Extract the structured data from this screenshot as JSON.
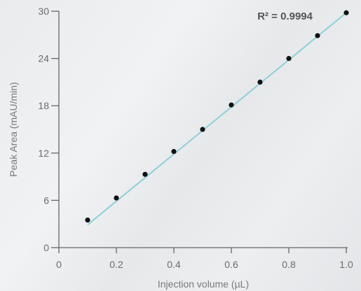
{
  "chart_data": {
    "type": "scatter",
    "title": "",
    "xlabel": "Injection volume (µL)",
    "ylabel": "Peak Area (mAU/min)",
    "xlim": [
      0,
      1.0
    ],
    "ylim": [
      0,
      30
    ],
    "x_ticks": [
      "0",
      "0.2",
      "0.4",
      "0.6",
      "0.8",
      "1.0"
    ],
    "y_ticks": [
      "0",
      "6",
      "12",
      "18",
      "24",
      "30"
    ],
    "grid": false,
    "points": {
      "x": [
        0.1,
        0.2,
        0.3,
        0.4,
        0.5,
        0.6,
        0.7,
        0.8,
        0.9,
        1.0
      ],
      "y": [
        3.5,
        6.3,
        9.3,
        12.2,
        15.0,
        18.1,
        21.0,
        24.0,
        26.9,
        29.8
      ]
    },
    "fit_line": {
      "x": [
        0.1,
        1.0
      ],
      "y": [
        2.9,
        29.8
      ]
    },
    "annotation": "R² =  0.9994",
    "colors": {
      "points": "#111111",
      "fit_line": "#8ecfd9",
      "axis": "#666666"
    }
  }
}
